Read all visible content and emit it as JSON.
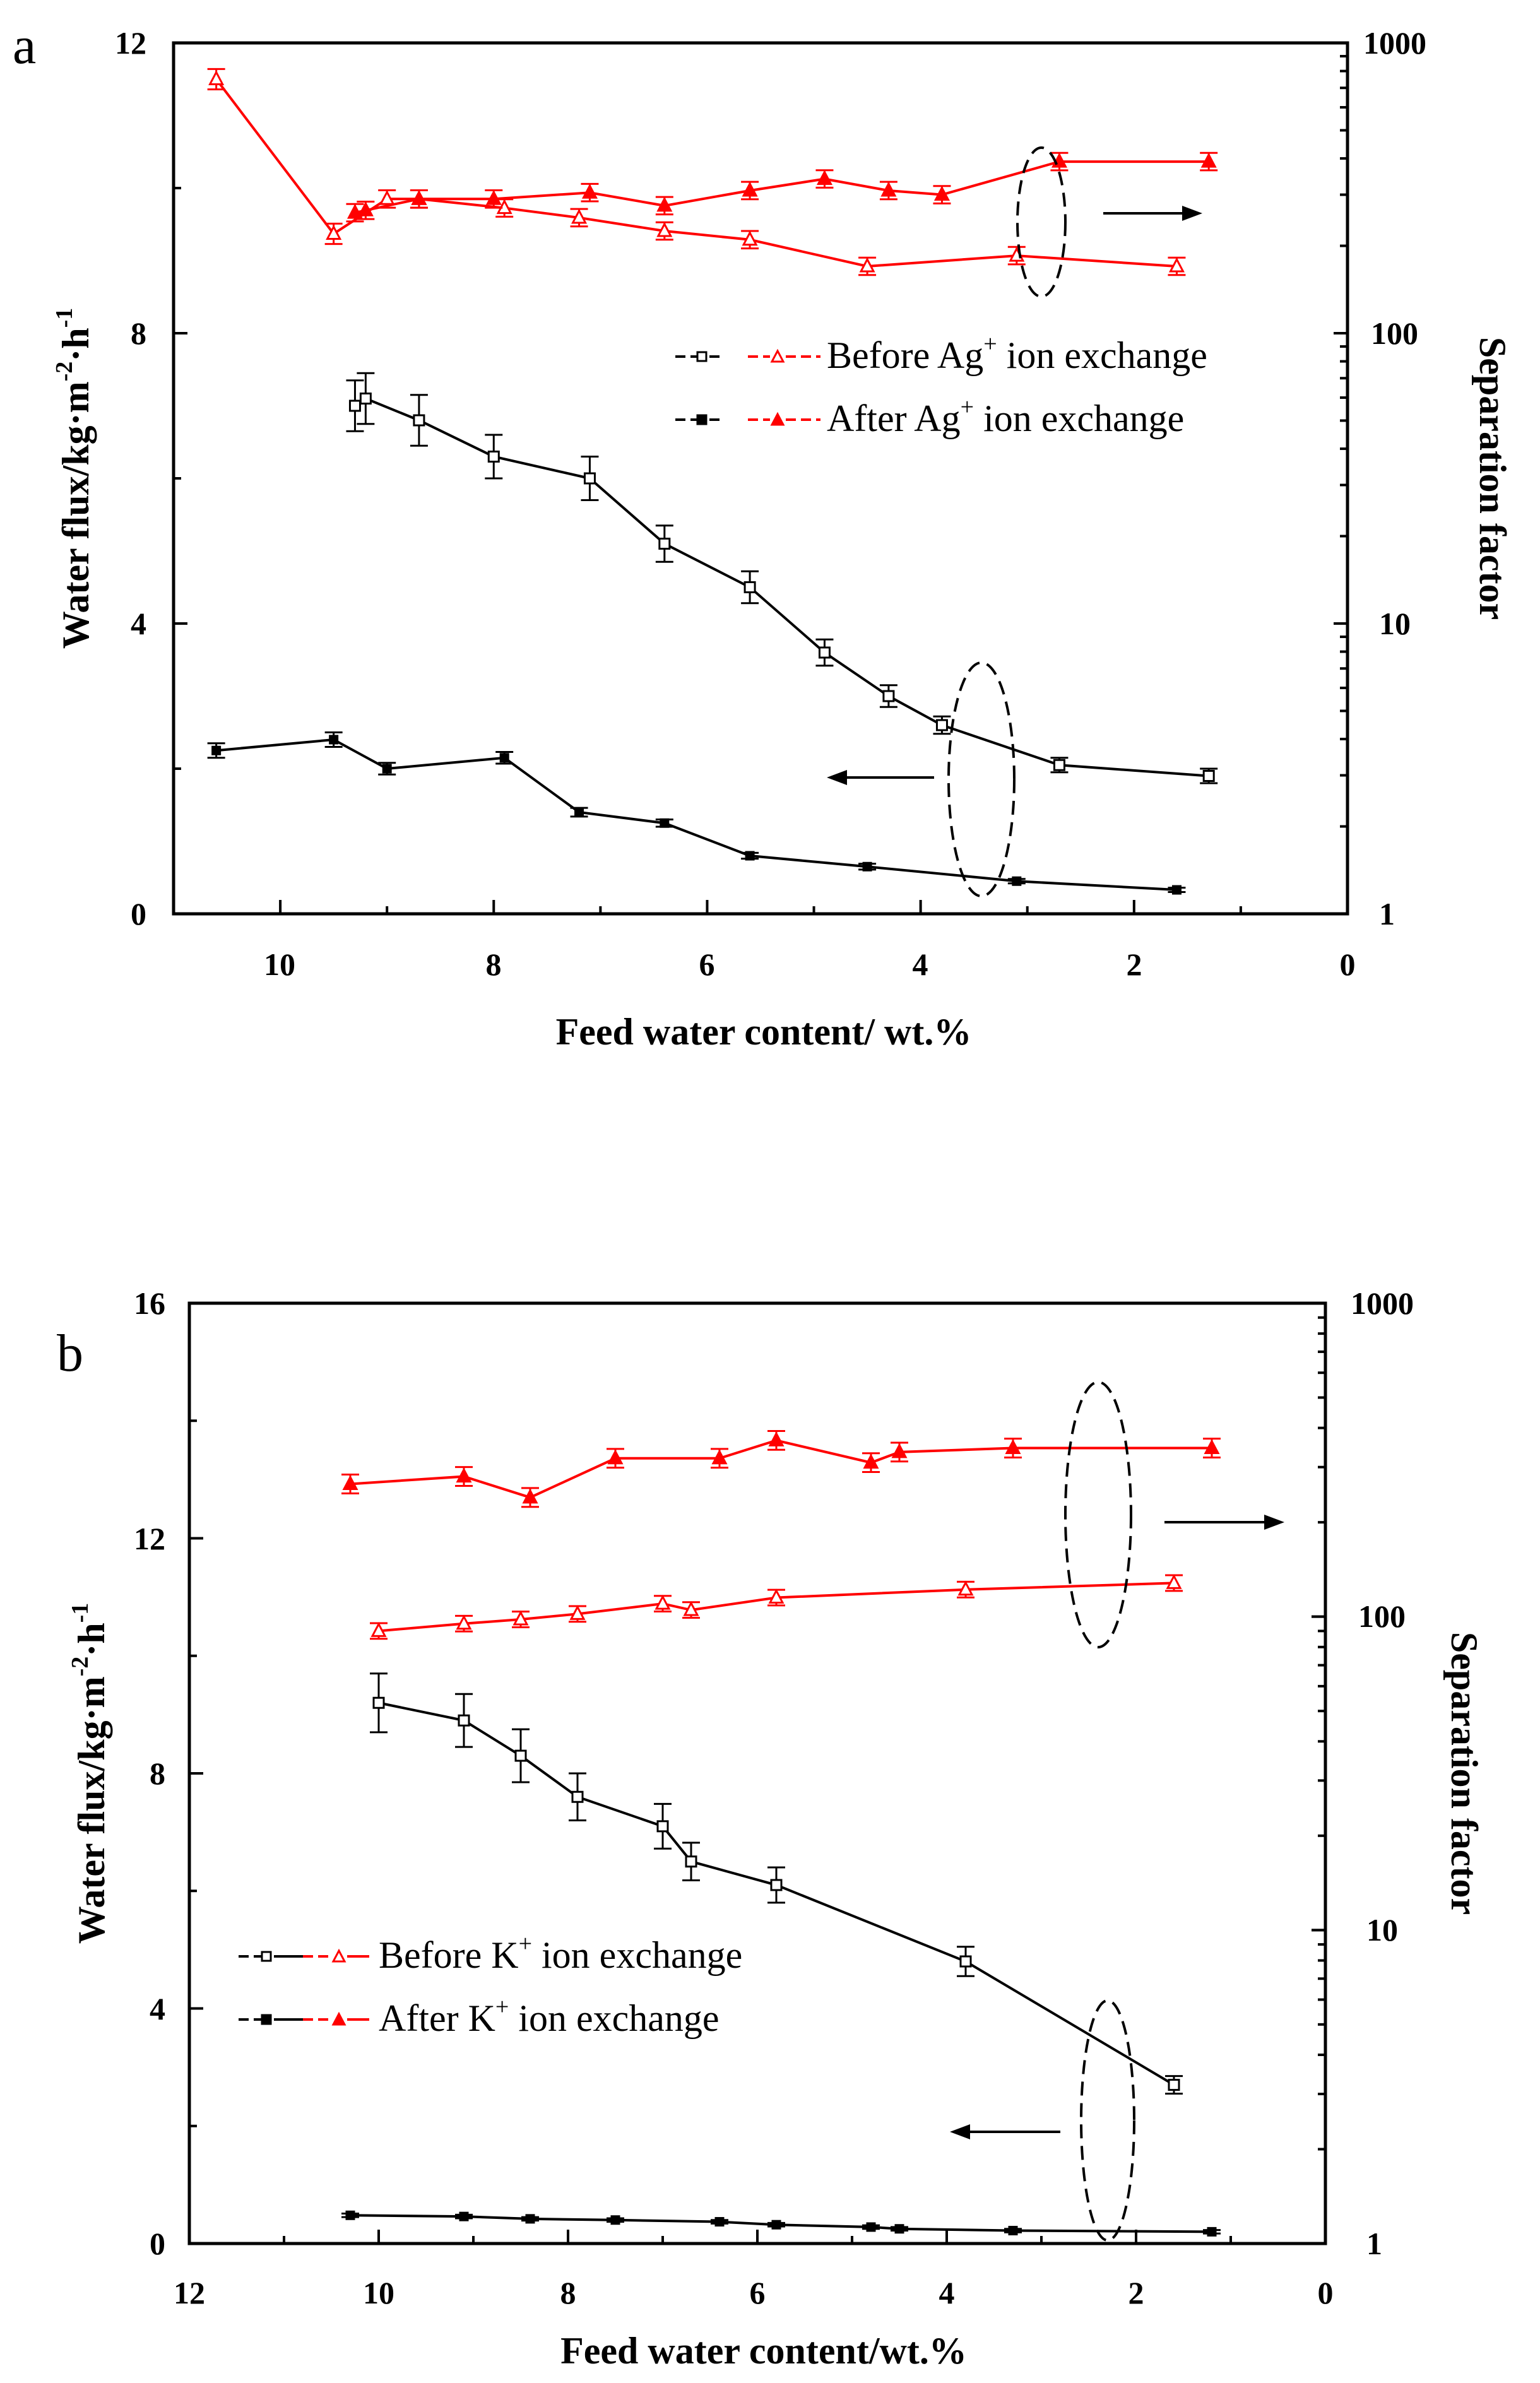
{
  "chart_data": [
    {
      "panel_label": "a",
      "type": "line",
      "xlabel": "Feed water content/ wt.%",
      "ylabel_left": "Water flux/kg·m",
      "ylabel_left_sup1": "-2",
      "ylabel_left_mid": "·h",
      "ylabel_left_sup2": "-1",
      "ylabel_right": "Separation factor",
      "xlim": [
        11,
        0
      ],
      "ylim_left": [
        0,
        12
      ],
      "ylim_right": [
        1,
        1000
      ],
      "right_scale": "log",
      "x_ticks": [
        10,
        8,
        6,
        4,
        2,
        0
      ],
      "y_left_ticks": [
        0,
        4,
        8,
        12
      ],
      "y_right_ticks": [
        1,
        10,
        100,
        1000
      ],
      "legend": [
        {
          "marker_left": "open-square",
          "marker_right": "open-triangle",
          "text": "Before Ag",
          "sup": "+",
          "text2": " ion exchange"
        },
        {
          "marker_left": "filled-square",
          "marker_right": "filled-triangle",
          "text": "After Ag",
          "sup": "+",
          "text2": " ion exchange"
        }
      ],
      "series": [
        {
          "name": "Water flux before Ag+ ion exchange",
          "axis": "left",
          "color": "#000000",
          "marker": "open-square",
          "x": [
            9.3,
            9.2,
            8.7,
            8.0,
            7.1,
            6.4,
            5.6,
            4.9,
            4.3,
            3.8,
            2.7,
            1.3
          ],
          "y": [
            7.0,
            7.1,
            6.8,
            6.3,
            6.0,
            5.1,
            4.5,
            3.6,
            3.0,
            2.6,
            2.05,
            1.9
          ],
          "err": [
            0.35,
            0.35,
            0.35,
            0.3,
            0.3,
            0.25,
            0.22,
            0.18,
            0.15,
            0.12,
            0.1,
            0.1
          ]
        },
        {
          "name": "Water flux after Ag+ ion exchange",
          "axis": "left",
          "color": "#000000",
          "marker": "filled-square",
          "x": [
            10.6,
            9.5,
            9.0,
            7.9,
            7.2,
            6.4,
            5.6,
            4.5,
            3.1,
            1.6
          ],
          "y": [
            2.25,
            2.4,
            2.0,
            2.15,
            1.4,
            1.25,
            0.8,
            0.65,
            0.45,
            0.33
          ],
          "err": [
            0.1,
            0.1,
            0.08,
            0.08,
            0.06,
            0.05,
            0.04,
            0.04,
            0.03,
            0.03
          ]
        },
        {
          "name": "Separation factor before Ag+ ion exchange",
          "axis": "right",
          "color": "#ff0000",
          "marker": "open-triangle",
          "x": [
            10.6,
            9.5,
            9.0,
            8.7,
            7.9,
            7.2,
            6.4,
            5.6,
            4.5,
            3.1,
            1.6
          ],
          "y": [
            750,
            220,
            290,
            290,
            270,
            250,
            225,
            210,
            170,
            185,
            170
          ],
          "err": [
            0.035,
            0.035,
            0.03,
            0.03,
            0.03,
            0.03,
            0.03,
            0.03,
            0.03,
            0.03,
            0.03
          ]
        },
        {
          "name": "Separation factor after Ag+ ion exchange",
          "axis": "right",
          "color": "#ff0000",
          "marker": "filled-triangle",
          "x": [
            9.3,
            9.2,
            8.7,
            8.0,
            7.1,
            6.4,
            5.6,
            4.9,
            4.3,
            3.8,
            2.7,
            1.3
          ],
          "y": [
            260,
            265,
            290,
            290,
            305,
            275,
            310,
            340,
            310,
            300,
            390,
            390
          ],
          "err": [
            0.03,
            0.03,
            0.03,
            0.03,
            0.03,
            0.03,
            0.03,
            0.03,
            0.03,
            0.03,
            0.03,
            0.03
          ]
        }
      ],
      "annotations": [
        {
          "type": "ellipse-arrow",
          "direction": "right",
          "target_axis": "right"
        },
        {
          "type": "ellipse-arrow",
          "direction": "left",
          "target_axis": "left"
        }
      ]
    },
    {
      "panel_label": "b",
      "type": "line",
      "xlabel": "Feed water content/wt.%",
      "ylabel_left": "Water flux/kg·m",
      "ylabel_left_sup1": "-2",
      "ylabel_left_mid": "·h",
      "ylabel_left_sup2": "-1",
      "ylabel_right": "Separation factor",
      "xlim": [
        12,
        0
      ],
      "ylim_left": [
        0,
        16
      ],
      "ylim_right": [
        1,
        1000
      ],
      "right_scale": "log",
      "x_ticks": [
        12,
        10,
        8,
        6,
        4,
        2,
        0
      ],
      "y_left_ticks": [
        0,
        4,
        8,
        12,
        16
      ],
      "y_right_ticks": [
        1,
        10,
        100,
        1000
      ],
      "legend": [
        {
          "marker_left": "open-square",
          "marker_right": "open-triangle",
          "text": "Before K",
          "sup": "+",
          "text2": " ion exchange"
        },
        {
          "marker_left": "filled-square",
          "marker_right": "filled-triangle",
          "text": "After K",
          "sup": "+",
          "text2": " ion exchange"
        }
      ],
      "series": [
        {
          "name": "Water flux before K+ ion exchange",
          "axis": "left",
          "color": "#000000",
          "marker": "open-square",
          "x": [
            10.0,
            9.1,
            8.5,
            7.9,
            7.0,
            6.7,
            5.8,
            3.8,
            1.6
          ],
          "y": [
            9.2,
            8.9,
            8.3,
            7.6,
            7.1,
            6.5,
            6.1,
            4.8,
            2.7
          ],
          "err": [
            0.5,
            0.45,
            0.45,
            0.4,
            0.38,
            0.32,
            0.3,
            0.25,
            0.15
          ]
        },
        {
          "name": "Water flux after K+ ion exchange",
          "axis": "left",
          "color": "#000000",
          "marker": "filled-square",
          "x": [
            10.3,
            9.1,
            8.4,
            7.5,
            6.4,
            5.8,
            4.8,
            4.5,
            3.3,
            1.2
          ],
          "y": [
            0.48,
            0.46,
            0.42,
            0.4,
            0.37,
            0.32,
            0.28,
            0.25,
            0.22,
            0.2
          ],
          "err": [
            0.03,
            0.03,
            0.03,
            0.03,
            0.03,
            0.03,
            0.03,
            0.03,
            0.03,
            0.03
          ]
        },
        {
          "name": "Separation factor before K+ ion exchange",
          "axis": "right",
          "color": "#ff0000",
          "marker": "open-triangle",
          "x": [
            10.0,
            9.1,
            8.5,
            7.9,
            7.0,
            6.7,
            5.8,
            3.8,
            1.6
          ],
          "y": [
            90,
            95,
            98,
            102,
            110,
            105,
            115,
            122,
            128
          ],
          "err": [
            0.025,
            0.025,
            0.025,
            0.025,
            0.025,
            0.025,
            0.025,
            0.025,
            0.025
          ]
        },
        {
          "name": "Separation factor after K+ ion exchange",
          "axis": "right",
          "color": "#ff0000",
          "marker": "filled-triangle",
          "x": [
            10.3,
            9.1,
            8.4,
            7.5,
            6.4,
            5.8,
            4.8,
            4.5,
            3.3,
            1.2
          ],
          "y": [
            265,
            280,
            240,
            320,
            320,
            365,
            310,
            335,
            345,
            345
          ],
          "err": [
            0.03,
            0.03,
            0.03,
            0.03,
            0.03,
            0.03,
            0.03,
            0.03,
            0.03,
            0.03
          ]
        }
      ],
      "annotations": [
        {
          "type": "ellipse-arrow",
          "direction": "right",
          "target_axis": "right"
        },
        {
          "type": "ellipse-arrow",
          "direction": "left",
          "target_axis": "left"
        }
      ]
    }
  ]
}
